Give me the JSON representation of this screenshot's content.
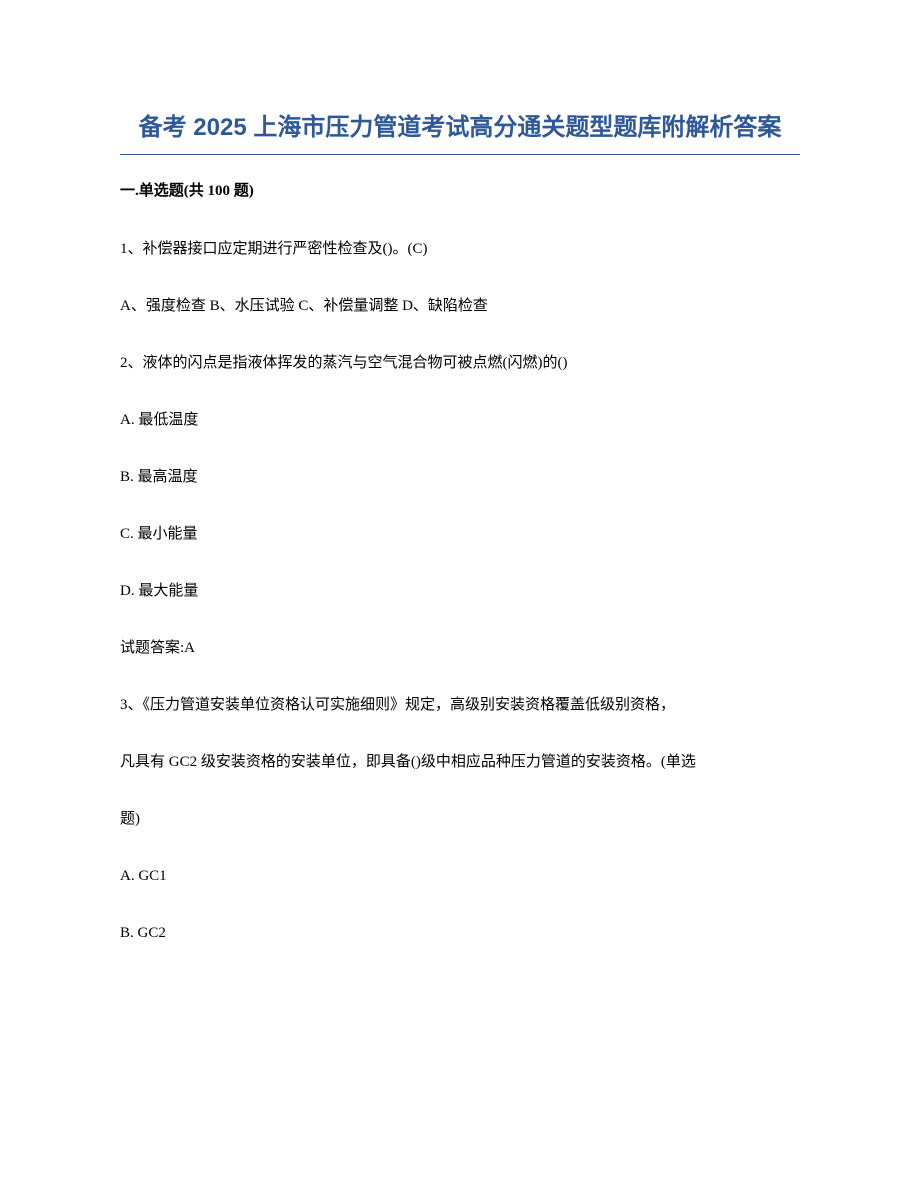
{
  "title": "备考 2025 上海市压力管道考试高分通关题型题库附解析答案",
  "sectionHeader": "一.单选题(共 100 题)",
  "questions": [
    {
      "text": "1、补偿器接口应定期进行严密性检查及()。(C)",
      "optionsInline": "A、强度检查 B、水压试验 C、补偿量调整 D、缺陷检查"
    },
    {
      "text": "2、液体的闪点是指液体挥发的蒸汽与空气混合物可被点燃(闪燃)的()",
      "optionA": "A. 最低温度",
      "optionB": "B. 最高温度",
      "optionC": "C. 最小能量",
      "optionD": "D. 最大能量",
      "answer": "试题答案:A"
    },
    {
      "text": "3、《压力管道安装单位资格认可实施细则》规定，高级别安装资格覆盖低级别资格，",
      "text2": "凡具有 GC2 级安装资格的安装单位，即具备()级中相应品种压力管道的安装资格。(单选",
      "text3": "题)",
      "optionA": "A. GC1",
      "optionB": "B. GC2"
    }
  ]
}
